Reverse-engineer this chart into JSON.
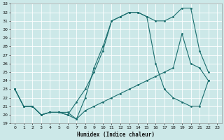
{
  "xlabel": "Humidex (Indice chaleur)",
  "background_color": "#cce8e8",
  "grid_color": "#b0d4d4",
  "line_color": "#1a6e6e",
  "xlim": [
    -0.5,
    23.5
  ],
  "ylim": [
    19,
    33
  ],
  "xticks": [
    0,
    1,
    2,
    3,
    4,
    5,
    6,
    7,
    8,
    9,
    10,
    11,
    12,
    13,
    14,
    15,
    16,
    17,
    18,
    19,
    20,
    21,
    22,
    23
  ],
  "yticks": [
    19,
    20,
    21,
    22,
    23,
    24,
    25,
    26,
    27,
    28,
    29,
    30,
    31,
    32,
    33
  ],
  "curve1_x": [
    0,
    1,
    2,
    3,
    4,
    5,
    6,
    7,
    8,
    9,
    10,
    11,
    12,
    13,
    14,
    15,
    16,
    17,
    18,
    19,
    20,
    21,
    22
  ],
  "curve1_y": [
    23,
    21,
    21,
    20,
    20.3,
    20.3,
    20,
    19.5,
    22,
    25.5,
    28,
    31,
    31.5,
    32,
    32,
    31.5,
    31,
    31,
    31.5,
    32.5,
    32.5,
    27.5,
    25
  ],
  "curve2_x": [
    0,
    1,
    2,
    3,
    4,
    5,
    6,
    7,
    8,
    9,
    10,
    11,
    12,
    13,
    14,
    15,
    16,
    17,
    18,
    19,
    20,
    21,
    22
  ],
  "curve2_y": [
    23,
    21,
    21,
    20,
    20.3,
    20.3,
    20,
    21.5,
    23,
    25,
    27.5,
    31,
    31.5,
    32,
    32,
    31.5,
    26,
    23,
    22,
    21.5,
    21,
    21,
    24
  ],
  "curve3_x": [
    0,
    1,
    2,
    3,
    4,
    5,
    6,
    7,
    8,
    9,
    10,
    11,
    12,
    13,
    14,
    15,
    16,
    17,
    18,
    19,
    20,
    21,
    22
  ],
  "curve3_y": [
    23,
    21,
    21,
    20,
    20.3,
    20.3,
    20.3,
    19.5,
    20.5,
    21,
    21.5,
    22,
    22.5,
    23,
    23.5,
    24,
    24.5,
    25,
    25.5,
    29.5,
    26,
    25.5,
    24
  ]
}
